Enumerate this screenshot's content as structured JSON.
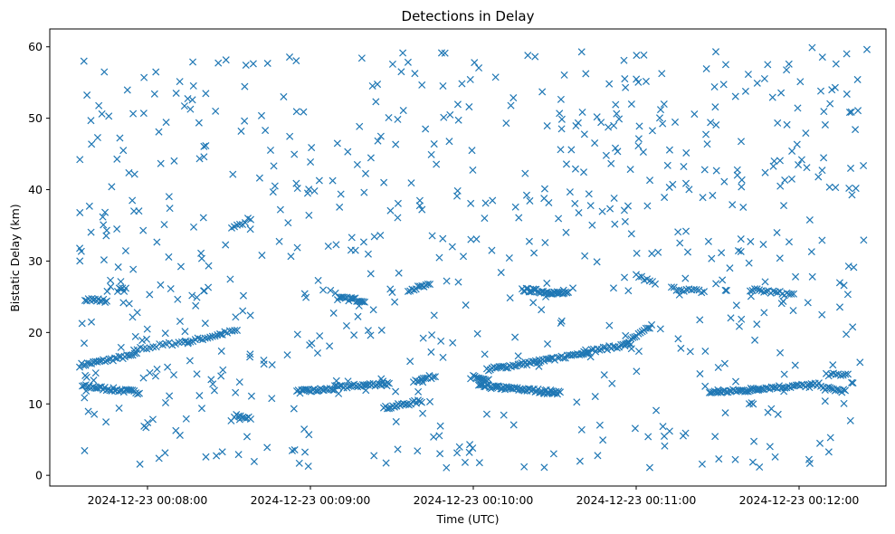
{
  "chart_data": {
    "type": "scatter",
    "title": "Detections in Delay",
    "xlabel": "Time (UTC)",
    "ylabel": "Bistatic Delay (km)",
    "marker": "x",
    "color": "#1f77b4",
    "grid": false,
    "xlim": [
      "2024-12-23 00:07:24",
      "2024-12-23 00:12:32"
    ],
    "ylim": [
      -1.5,
      62.5
    ],
    "x_ticks": [
      "2024-12-23 00:08:00",
      "2024-12-23 00:09:00",
      "2024-12-23 00:10:00",
      "2024-12-23 00:11:00",
      "2024-12-23 00:12:00"
    ],
    "y_ticks": [
      0,
      10,
      20,
      30,
      40,
      50,
      60
    ],
    "tracks": [
      {
        "start": "2024-12-23 00:07:35",
        "end": "2024-12-23 00:07:56",
        "y_start": 15.4,
        "y_end": 16.9,
        "count": 30
      },
      {
        "start": "2024-12-23 00:07:55",
        "end": "2024-12-23 00:08:15",
        "y_start": 17.6,
        "y_end": 18.8,
        "count": 18
      },
      {
        "start": "2024-12-23 00:08:14",
        "end": "2024-12-23 00:08:33",
        "y_start": 18.6,
        "y_end": 20.3,
        "count": 22
      },
      {
        "start": "2024-12-23 00:07:36",
        "end": "2024-12-23 00:07:57",
        "y_start": 12.5,
        "y_end": 11.6,
        "count": 34
      },
      {
        "start": "2024-12-23 00:07:37",
        "end": "2024-12-23 00:07:45",
        "y_start": 24.7,
        "y_end": 24.4,
        "count": 14
      },
      {
        "start": "2024-12-23 00:07:49",
        "end": "2024-12-23 00:07:52",
        "y_start": 26.0,
        "y_end": 26.0,
        "count": 6
      },
      {
        "start": "2024-12-23 00:08:32",
        "end": "2024-12-23 00:08:38",
        "y_start": 8.3,
        "y_end": 8.1,
        "count": 9
      },
      {
        "start": "2024-12-23 00:08:31",
        "end": "2024-12-23 00:08:38",
        "y_start": 34.5,
        "y_end": 36.0,
        "count": 8
      },
      {
        "start": "2024-12-23 00:08:55",
        "end": "2024-12-23 00:09:09",
        "y_start": 11.7,
        "y_end": 12.1,
        "count": 25
      },
      {
        "start": "2024-12-23 00:09:09",
        "end": "2024-12-23 00:09:29",
        "y_start": 12.3,
        "y_end": 12.9,
        "count": 32
      },
      {
        "start": "2024-12-23 00:09:10",
        "end": "2024-12-23 00:09:20",
        "y_start": 24.8,
        "y_end": 24.5,
        "count": 18
      },
      {
        "start": "2024-12-23 00:09:27",
        "end": "2024-12-23 00:09:41",
        "y_start": 9.4,
        "y_end": 10.4,
        "count": 22
      },
      {
        "start": "2024-12-23 00:09:38",
        "end": "2024-12-23 00:09:46",
        "y_start": 13.2,
        "y_end": 13.9,
        "count": 12
      },
      {
        "start": "2024-12-23 00:09:36",
        "end": "2024-12-23 00:09:44",
        "y_start": 26.0,
        "y_end": 26.6,
        "count": 12
      },
      {
        "start": "2024-12-23 00:10:00",
        "end": "2024-12-23 00:10:05",
        "y_start": 13.9,
        "y_end": 13.2,
        "count": 10
      },
      {
        "start": "2024-12-23 00:10:02",
        "end": "2024-12-23 00:10:32",
        "y_start": 12.5,
        "y_end": 11.6,
        "count": 60
      },
      {
        "start": "2024-12-23 00:10:05",
        "end": "2024-12-23 00:10:30",
        "y_start": 14.8,
        "y_end": 16.3,
        "count": 40
      },
      {
        "start": "2024-12-23 00:10:18",
        "end": "2024-12-23 00:10:35",
        "y_start": 26.0,
        "y_end": 25.4,
        "count": 34
      },
      {
        "start": "2024-12-23 00:10:31",
        "end": "2024-12-23 00:10:42",
        "y_start": 16.4,
        "y_end": 17.3,
        "count": 16
      },
      {
        "start": "2024-12-23 00:10:40",
        "end": "2024-12-23 00:10:58",
        "y_start": 17.2,
        "y_end": 18.4,
        "count": 26
      },
      {
        "start": "2024-12-23 00:10:56",
        "end": "2024-12-23 00:11:05",
        "y_start": 18.4,
        "y_end": 20.7,
        "count": 14
      },
      {
        "start": "2024-12-23 00:11:00",
        "end": "2024-12-23 00:11:07",
        "y_start": 28.0,
        "y_end": 26.8,
        "count": 8
      },
      {
        "start": "2024-12-23 00:11:13",
        "end": "2024-12-23 00:11:25",
        "y_start": 26.2,
        "y_end": 25.7,
        "count": 14
      },
      {
        "start": "2024-12-23 00:11:27",
        "end": "2024-12-23 00:11:45",
        "y_start": 11.6,
        "y_end": 12.0,
        "count": 30
      },
      {
        "start": "2024-12-23 00:11:45",
        "end": "2024-12-23 00:12:08",
        "y_start": 12.2,
        "y_end": 12.7,
        "count": 34
      },
      {
        "start": "2024-12-23 00:11:42",
        "end": "2024-12-23 00:11:58",
        "y_start": 26.0,
        "y_end": 25.3,
        "count": 20
      },
      {
        "start": "2024-12-23 00:12:09",
        "end": "2024-12-23 00:12:17",
        "y_start": 12.2,
        "y_end": 11.8,
        "count": 14
      },
      {
        "start": "2024-12-23 00:12:10",
        "end": "2024-12-23 00:12:18",
        "y_start": 14.0,
        "y_end": 14.2,
        "count": 10
      }
    ],
    "scatter_range": {
      "x": [
        "2024-12-23 00:07:35",
        "2024-12-23 00:12:25"
      ],
      "y": [
        1,
        60
      ],
      "count": 700,
      "seed": 7
    }
  }
}
